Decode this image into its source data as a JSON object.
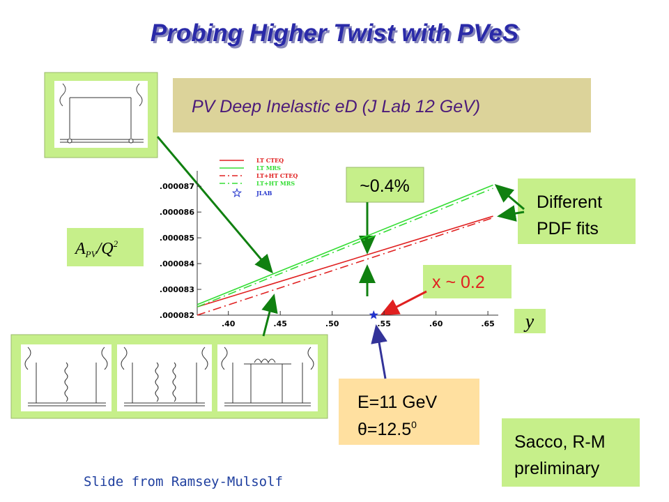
{
  "title": "Probing Higher Twist with PVeS",
  "headline": "PV Deep Inelastic eD (J Lab 12 GeV)",
  "callouts": {
    "difference": "~0.4%",
    "pdf_fits": [
      "Different",
      "PDF fits"
    ],
    "x_value": "x ~ 0.2",
    "y_axis": "y",
    "y_quantity": {
      "main": "A",
      "sub": "PV",
      "rest": "/Q",
      "sup": "2"
    },
    "kinematics": {
      "energy": "E=11 GeV",
      "angle": "θ=12.5",
      "angle_sup": "0"
    },
    "authors": [
      "Sacco, R-M",
      "preliminary"
    ]
  },
  "footer": "Slide from Ramsey-Mulsolf",
  "chart_data": {
    "type": "line",
    "series": [
      {
        "name": "LT CTEQ",
        "color": "#e02020",
        "style": "solid",
        "x": [
          0.37,
          0.655
        ],
        "values": [
          8.232e-05,
          8.584e-05
        ]
      },
      {
        "name": "LT MRS",
        "color": "#33dd33",
        "style": "solid",
        "x": [
          0.37,
          0.655
        ],
        "values": [
          8.241e-05,
          8.705e-05
        ]
      },
      {
        "name": "LT+HT CTEQ",
        "color": "#e02020",
        "style": "dashed",
        "x": [
          0.37,
          0.655
        ],
        "values": [
          8.2e-05,
          8.578e-05
        ]
      },
      {
        "name": "LT+HT MRS",
        "color": "#33dd33",
        "style": "dashed",
        "x": [
          0.37,
          0.655
        ],
        "values": [
          8.232e-05,
          8.692e-05
        ]
      }
    ],
    "markers": [
      {
        "name": "JLAB",
        "color": "#2233cc",
        "x": [
          0.54
        ],
        "values": [
          8.2e-05
        ]
      }
    ],
    "xlim": [
      0.37,
      0.66
    ],
    "ylim": [
      8.2e-05,
      8.76e-05
    ],
    "xticks": [
      {
        "value": 0.4,
        "label": ".40"
      },
      {
        "value": 0.45,
        "label": ".45"
      },
      {
        "value": 0.5,
        "label": ".50"
      },
      {
        "value": 0.55,
        "label": ".55"
      },
      {
        "value": 0.6,
        "label": ".60"
      },
      {
        "value": 0.65,
        "label": ".65"
      }
    ],
    "yticks": [
      {
        "value": 8.2e-05,
        "label": ".000082"
      },
      {
        "value": 8.3e-05,
        "label": ".000083"
      },
      {
        "value": 8.4e-05,
        "label": ".000084"
      },
      {
        "value": 8.5e-05,
        "label": ".000085"
      },
      {
        "value": 8.6e-05,
        "label": ".000086"
      },
      {
        "value": 8.7e-05,
        "label": ".000087"
      }
    ]
  }
}
